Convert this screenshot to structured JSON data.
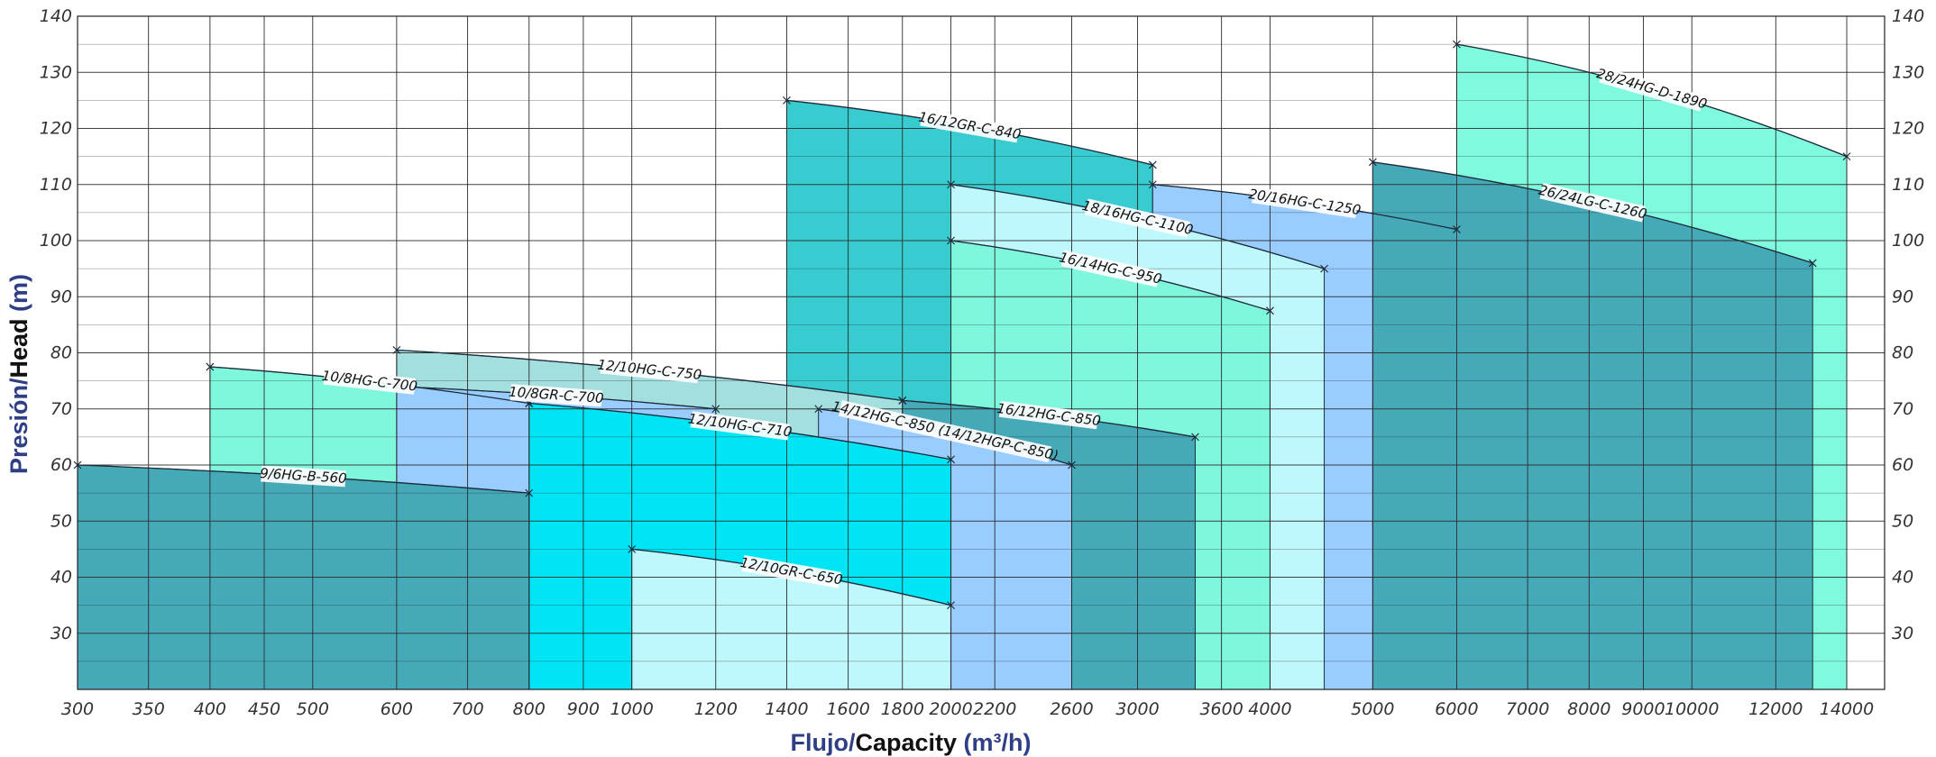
{
  "chart_data": {
    "type": "area",
    "x_scale": "log",
    "xlim": [
      300,
      15200
    ],
    "ylim": [
      20,
      140
    ],
    "grid": true,
    "x_ticks": [
      300,
      350,
      400,
      450,
      500,
      600,
      700,
      800,
      900,
      1000,
      1200,
      1400,
      1600,
      1800,
      2000,
      2200,
      2600,
      3000,
      3600,
      4000,
      5000,
      6000,
      7000,
      8000,
      9000,
      10000,
      12000,
      14000
    ],
    "y_ticks": [
      30,
      40,
      50,
      60,
      70,
      80,
      90,
      100,
      110,
      120,
      130,
      140
    ],
    "x_title": {
      "part1": "Flujo/",
      "part2": "Capacity",
      "part3": " (m³/h)"
    },
    "y_title": {
      "part1": "Presión/",
      "part2": "Head",
      "part3": " (m)"
    },
    "series": [
      {
        "name": "16/12GR-C-840",
        "x": [
          1400,
          3100
        ],
        "y": [
          125,
          113.5
        ],
        "color": "#38cbd0"
      },
      {
        "name": "12/10HG-C-750",
        "x": [
          600,
          1800
        ],
        "y": [
          80.5,
          71.5
        ],
        "color": "#a4dfdf"
      },
      {
        "name": "10/8HG-C-700",
        "x": [
          400,
          800
        ],
        "y": [
          77.5,
          71
        ],
        "color": "#7ff7dd"
      },
      {
        "name": "28/24HG-D-1890",
        "x": [
          6000,
          14000
        ],
        "y": [
          135,
          115
        ],
        "color": "#80fadf"
      },
      {
        "name": "20/16HG-C-1250",
        "x": [
          3100,
          6000
        ],
        "y": [
          110,
          102
        ],
        "color": "#99ccff"
      },
      {
        "name": "26/24LG-C-1260",
        "x": [
          5000,
          13000
        ],
        "y": [
          114,
          96
        ],
        "color": "#45a9b8"
      },
      {
        "name": "18/16HG-C-1100",
        "x": [
          2000,
          4500
        ],
        "y": [
          110,
          95
        ],
        "color": "#bff8fc"
      },
      {
        "name": "16/14HG-C-950",
        "x": [
          2000,
          4000
        ],
        "y": [
          100,
          87.5
        ],
        "color": "#7ff7dd"
      },
      {
        "name": "16/12HG-C-850",
        "x": [
          1800,
          3400
        ],
        "y": [
          71.5,
          65
        ],
        "color": "#45a9b8"
      },
      {
        "name": "14/12HG-C-850 (14/12HGP-C-850)",
        "x": [
          1500,
          2600
        ],
        "y": [
          70,
          60
        ],
        "color": "#99ccff"
      },
      {
        "name": "10/8GR-C-700",
        "x": [
          600,
          1200
        ],
        "y": [
          74,
          70
        ],
        "color": "#99ccff"
      },
      {
        "name": "12/10HG-C-710",
        "x": [
          800,
          2000
        ],
        "y": [
          71,
          61
        ],
        "color": "#00e5f5"
      },
      {
        "name": "9/6HG-B-560",
        "x": [
          300,
          800
        ],
        "y": [
          60,
          55
        ],
        "color": "#45a9b8"
      },
      {
        "name": "12/10GR-C-650",
        "x": [
          1000,
          2000
        ],
        "y": [
          45,
          35
        ],
        "color": "#bff8fc"
      }
    ]
  }
}
